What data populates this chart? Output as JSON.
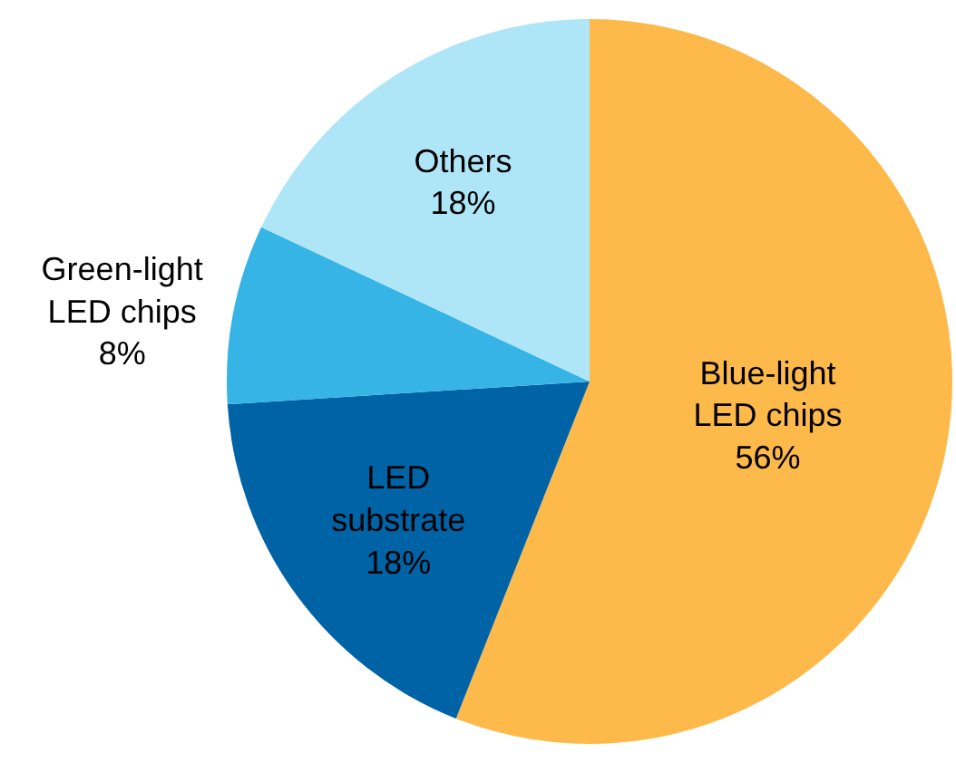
{
  "chart_data": {
    "type": "pie",
    "categories": [
      "Blue-light LED chips",
      "LED substrate",
      "Green-light LED chips",
      "Others"
    ],
    "values": [
      56,
      18,
      8,
      18
    ],
    "value_labels": [
      "56%",
      "18%",
      "8%",
      "18%"
    ],
    "colors": [
      "#fdb94a",
      "#0063a5",
      "#36b4e6",
      "#aee6f8"
    ],
    "legend": false
  }
}
